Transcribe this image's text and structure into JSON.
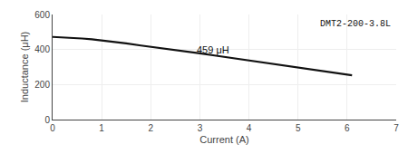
{
  "chart_data": {
    "type": "line",
    "xlabel": "Current (A)",
    "ylabel": "Inductance (μH)",
    "x": [
      0.0,
      0.1,
      0.2,
      0.4,
      0.6,
      0.8,
      1.0,
      1.2,
      1.5,
      1.8,
      2.0,
      2.3,
      2.6,
      3.0,
      3.3,
      3.6,
      4.0,
      4.3,
      4.6,
      5.0,
      5.3,
      5.6,
      6.0,
      6.1
    ],
    "values": [
      472,
      471,
      470,
      467,
      463,
      458,
      452,
      445,
      435,
      423,
      416,
      405,
      393,
      378,
      366,
      354,
      338,
      325,
      313,
      297,
      284,
      272,
      257,
      253
    ],
    "color": "#111111",
    "xlim": [
      0,
      7
    ],
    "ylim": [
      0,
      600
    ],
    "xticks": [
      0,
      1,
      2,
      3,
      4,
      5,
      6,
      7
    ],
    "yticks": [
      0,
      200,
      400,
      600
    ],
    "grid": true,
    "annotations": [
      {
        "text": "459 μH",
        "x": 2.9,
        "y": 400
      },
      {
        "text": "DMT2-200-3.8L"
      }
    ]
  }
}
